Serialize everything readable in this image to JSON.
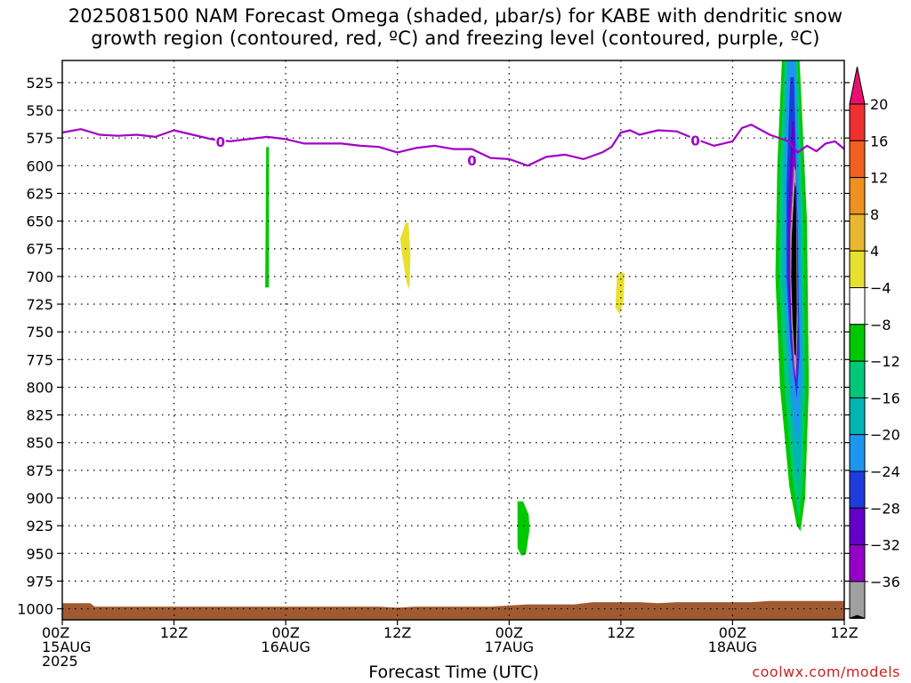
{
  "title": {
    "line1": "2025081500 NAM Forecast Omega (shaded, μbar/s) for KABE with dendritic snow",
    "line2": "growth region (contoured, red, ºC) and freezing level (contoured, purple, ºC)"
  },
  "x_axis_title": "Forecast Time (UTC)",
  "credit": "coolwx.com/models",
  "chart_data": {
    "type": "time-height",
    "title": "2025081500 NAM Forecast Omega (shaded, μbar/s) for KABE with dendritic snow growth region (contoured, red, ºC) and freezing level (contoured, purple, ºC)",
    "xlabel": "Forecast Time (UTC)",
    "ylabel": "",
    "x_range_hours": [
      0,
      84
    ],
    "y_range_hPa": [
      1010,
      505
    ],
    "y_ticks": [
      525,
      550,
      575,
      600,
      625,
      650,
      675,
      700,
      725,
      750,
      775,
      800,
      825,
      850,
      875,
      900,
      925,
      950,
      975,
      1000
    ],
    "x_ticks": [
      {
        "h": 0,
        "lines": [
          "00Z",
          "15AUG",
          "2025"
        ]
      },
      {
        "h": 12,
        "lines": [
          "12Z"
        ]
      },
      {
        "h": 24,
        "lines": [
          "00Z",
          "16AUG"
        ]
      },
      {
        "h": 36,
        "lines": [
          "12Z"
        ]
      },
      {
        "h": 48,
        "lines": [
          "00Z",
          "17AUG"
        ]
      },
      {
        "h": 60,
        "lines": [
          "12Z"
        ]
      },
      {
        "h": 72,
        "lines": [
          "00Z",
          "18AUG"
        ]
      },
      {
        "h": 84,
        "lines": [
          "12Z"
        ]
      }
    ],
    "grid": true,
    "colorbar": {
      "labels": [
        "20",
        "16",
        "12",
        "8",
        "4",
        "−4",
        "−8",
        "−12",
        "−16",
        "−20",
        "−24",
        "−28",
        "−32",
        "−36"
      ],
      "colors_top_to_bottom": [
        "#e8106e",
        "#f03030",
        "#f06020",
        "#f09020",
        "#e8b830",
        "#e8e030",
        "#ffffff",
        "#00c800",
        "#00c878",
        "#00b4b4",
        "#1e96f0",
        "#1e3cdc",
        "#6400c8",
        "#9600c8",
        "#a0a0a0",
        "#000000"
      ]
    },
    "freezing_level": {
      "label": "0",
      "color": "#a000c8",
      "points": [
        [
          0,
          570
        ],
        [
          2,
          567
        ],
        [
          4,
          572
        ],
        [
          6,
          573
        ],
        [
          8,
          572
        ],
        [
          10,
          574
        ],
        [
          12,
          568
        ],
        [
          14,
          572
        ],
        [
          16,
          576
        ],
        [
          18,
          578
        ],
        [
          20,
          576
        ],
        [
          22,
          574
        ],
        [
          24,
          576
        ],
        [
          26,
          580
        ],
        [
          28,
          580
        ],
        [
          30,
          580
        ],
        [
          32,
          582
        ],
        [
          34,
          583
        ],
        [
          36,
          588
        ],
        [
          38,
          584
        ],
        [
          40,
          582
        ],
        [
          42,
          585
        ],
        [
          44,
          585
        ],
        [
          46,
          593
        ],
        [
          48,
          594
        ],
        [
          50,
          600
        ],
        [
          52,
          592
        ],
        [
          54,
          590
        ],
        [
          56,
          594
        ],
        [
          58,
          588
        ],
        [
          59,
          583
        ],
        [
          60,
          570
        ],
        [
          61,
          568
        ],
        [
          62,
          572
        ],
        [
          64,
          568
        ],
        [
          66,
          569
        ],
        [
          68,
          576
        ],
        [
          70,
          582
        ],
        [
          72,
          578
        ],
        [
          73,
          566
        ],
        [
          74,
          563
        ],
        [
          76,
          572
        ],
        [
          78,
          578
        ],
        [
          79,
          588
        ],
        [
          80,
          582
        ],
        [
          81,
          587
        ],
        [
          82,
          580
        ],
        [
          83,
          578
        ],
        [
          84,
          585
        ]
      ],
      "label_positions": [
        [
          17,
          578
        ],
        [
          44,
          595
        ],
        [
          68,
          577
        ]
      ]
    },
    "omega_features": [
      {
        "name": "green-streak-16aug",
        "value_range": "−8 to −4",
        "color": "#00c800",
        "polygon": [
          [
            21.9,
            583
          ],
          [
            22.2,
            583
          ],
          [
            22.2,
            710
          ],
          [
            21.8,
            710
          ]
        ]
      },
      {
        "name": "yellow-blob-1",
        "value_range": "4 to 8",
        "color": "#e8e030",
        "polygon": [
          [
            36.9,
            651
          ],
          [
            37.2,
            652
          ],
          [
            37.4,
            680
          ],
          [
            37.3,
            712
          ],
          [
            37.0,
            706
          ],
          [
            36.5,
            680
          ],
          [
            36.3,
            666
          ]
        ]
      },
      {
        "name": "yellow-blob-2",
        "value_range": "4 to 8",
        "color": "#e8e030",
        "polygon": [
          [
            59.6,
            697
          ],
          [
            60.4,
            697
          ],
          [
            60.3,
            722
          ],
          [
            59.9,
            734
          ],
          [
            59.4,
            728
          ]
        ]
      },
      {
        "name": "green-blob-17aug",
        "value_range": "−8 to −4",
        "color": "#00c800",
        "polygon": [
          [
            48.9,
            903
          ],
          [
            49.5,
            903
          ],
          [
            50.1,
            915
          ],
          [
            50.2,
            928
          ],
          [
            49.8,
            951
          ],
          [
            49.3,
            952
          ],
          [
            48.9,
            945
          ]
        ]
      },
      {
        "name": "core-green",
        "color": "#00c800",
        "polygon": [
          [
            77.3,
            505
          ],
          [
            79.2,
            505
          ],
          [
            80.0,
            650
          ],
          [
            80.2,
            800
          ],
          [
            79.8,
            900
          ],
          [
            79.3,
            930
          ],
          [
            78.9,
            925
          ],
          [
            78.1,
            890
          ],
          [
            77.1,
            800
          ],
          [
            76.6,
            700
          ],
          [
            76.8,
            600
          ]
        ]
      },
      {
        "name": "core-teal",
        "color": "#00c878",
        "polygon": [
          [
            77.6,
            505
          ],
          [
            79.0,
            505
          ],
          [
            79.6,
            650
          ],
          [
            79.8,
            800
          ],
          [
            79.5,
            890
          ],
          [
            79.1,
            918
          ],
          [
            78.4,
            880
          ],
          [
            77.6,
            800
          ],
          [
            77.0,
            700
          ],
          [
            77.1,
            600
          ]
        ]
      },
      {
        "name": "core-cyan",
        "color": "#00b4b4",
        "polygon": [
          [
            77.8,
            505
          ],
          [
            78.8,
            505
          ],
          [
            79.4,
            650
          ],
          [
            79.6,
            790
          ],
          [
            79.3,
            870
          ],
          [
            79.0,
            890
          ],
          [
            78.6,
            860
          ],
          [
            78.0,
            790
          ],
          [
            77.3,
            700
          ],
          [
            77.4,
            600
          ]
        ]
      },
      {
        "name": "core-blue",
        "color": "#1e96f0",
        "polygon": [
          [
            78.0,
            505
          ],
          [
            78.7,
            505
          ],
          [
            79.2,
            660
          ],
          [
            79.4,
            780
          ],
          [
            79.1,
            840
          ],
          [
            78.9,
            850
          ],
          [
            78.5,
            820
          ],
          [
            78.1,
            780
          ],
          [
            77.6,
            700
          ],
          [
            77.6,
            600
          ]
        ]
      },
      {
        "name": "core-darkblue",
        "color": "#1e3cdc",
        "polygon": [
          [
            78.2,
            520
          ],
          [
            78.6,
            520
          ],
          [
            79.0,
            660
          ],
          [
            79.2,
            770
          ],
          [
            78.9,
            810
          ],
          [
            78.6,
            790
          ],
          [
            78.2,
            760
          ],
          [
            77.8,
            700
          ],
          [
            77.8,
            620
          ]
        ]
      },
      {
        "name": "core-purple",
        "color": "#6400c8",
        "polygon": [
          [
            78.4,
            560
          ],
          [
            78.6,
            560
          ],
          [
            78.9,
            660
          ],
          [
            79.0,
            760
          ],
          [
            78.8,
            800
          ],
          [
            78.5,
            780
          ],
          [
            78.2,
            740
          ],
          [
            78.0,
            700
          ],
          [
            78.0,
            640
          ]
        ]
      },
      {
        "name": "core-magenta",
        "color": "#9600c8",
        "polygon": [
          [
            78.5,
            585
          ],
          [
            78.7,
            590
          ],
          [
            78.9,
            660
          ],
          [
            79.0,
            760
          ],
          [
            78.8,
            800
          ],
          [
            78.6,
            790
          ],
          [
            78.3,
            740
          ],
          [
            78.1,
            700
          ],
          [
            78.1,
            650
          ]
        ]
      },
      {
        "name": "core-gray",
        "color": "#a0a0a0",
        "polygon": [
          [
            78.6,
            600
          ],
          [
            78.8,
            605
          ],
          [
            78.9,
            660
          ],
          [
            79.0,
            740
          ],
          [
            78.8,
            792
          ],
          [
            78.6,
            780
          ],
          [
            78.3,
            740
          ],
          [
            78.2,
            700
          ],
          [
            78.2,
            660
          ]
        ]
      },
      {
        "name": "core-black",
        "color": "#000000",
        "polygon": [
          [
            78.7,
            615
          ],
          [
            78.8,
            620
          ],
          [
            78.85,
            660
          ],
          [
            78.9,
            730
          ],
          [
            78.8,
            772
          ],
          [
            78.65,
            770
          ],
          [
            78.45,
            740
          ],
          [
            78.3,
            700
          ],
          [
            78.35,
            665
          ]
        ]
      }
    ],
    "terrain": {
      "color": "#a05a32",
      "top_points": [
        [
          0,
          995
        ],
        [
          3,
          995
        ],
        [
          3.5,
          998
        ],
        [
          10,
          998
        ],
        [
          22,
          998
        ],
        [
          34,
          998
        ],
        [
          36,
          999
        ],
        [
          38,
          998
        ],
        [
          46,
          998
        ],
        [
          50,
          996
        ],
        [
          55,
          996
        ],
        [
          57,
          994
        ],
        [
          62,
          994
        ],
        [
          64,
          995
        ],
        [
          66,
          994
        ],
        [
          74,
          994
        ],
        [
          76,
          993
        ],
        [
          84,
          993
        ]
      ]
    }
  }
}
